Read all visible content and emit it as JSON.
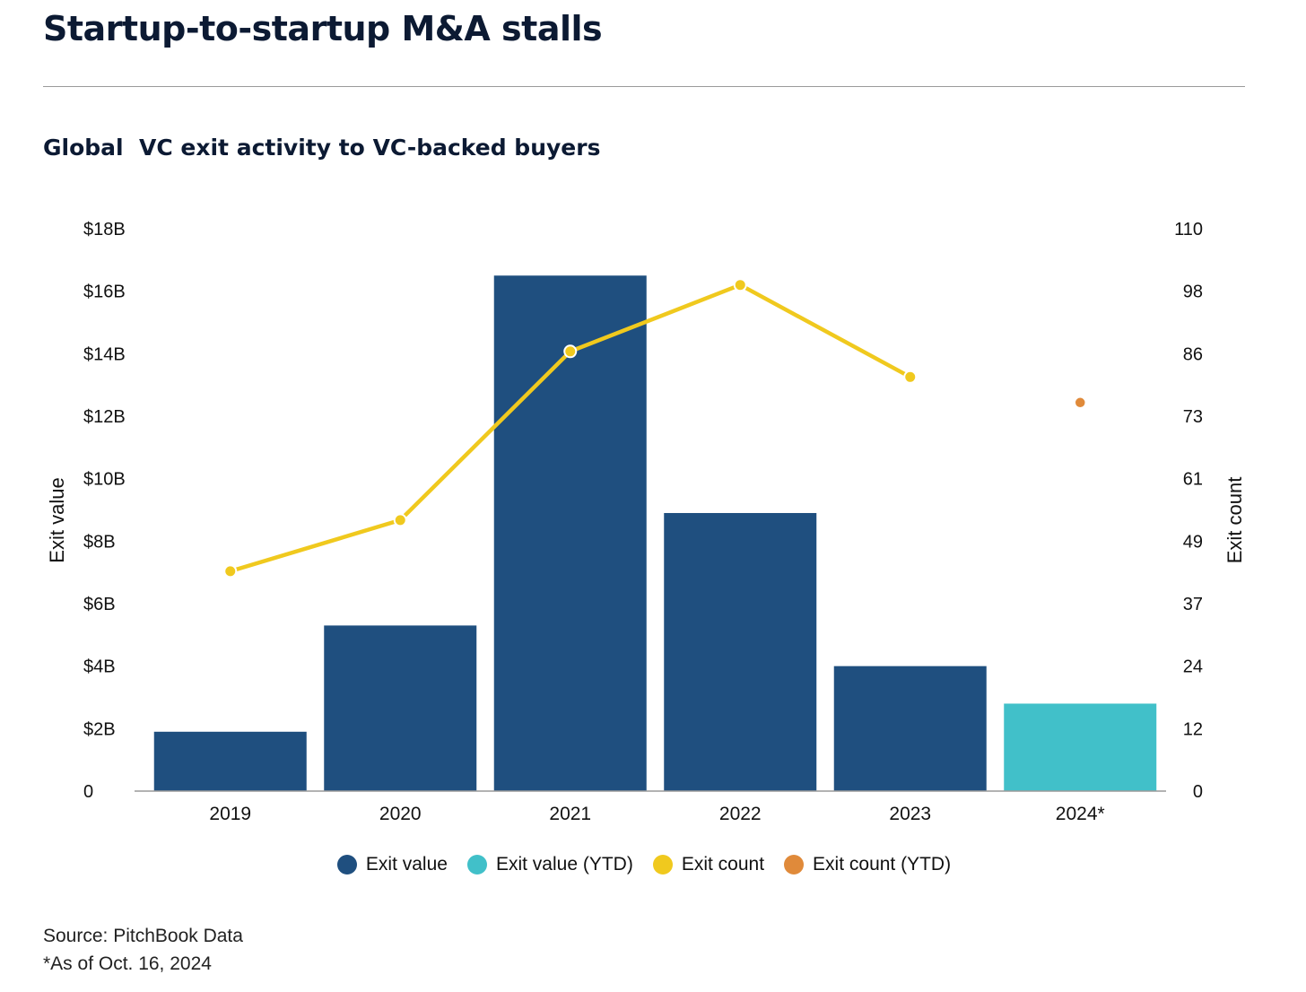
{
  "header": {
    "title": "Startup-to-startup M&A stalls",
    "subtitle": "Global  VC exit activity to VC-backed buyers"
  },
  "colors": {
    "exit_value": "#1f4f7f",
    "exit_value_ytd": "#41c0c9",
    "exit_count": "#f0c91e",
    "exit_count_ytd": "#e08a3a"
  },
  "chart_data": {
    "type": "bar",
    "categories": [
      "2019",
      "2020",
      "2021",
      "2022",
      "2023",
      "2024*"
    ],
    "ylabel_left": "Exit value",
    "ylabel_right": "Exit count",
    "left_ticks": [
      "0",
      "$2B",
      "$4B",
      "$6B",
      "$8B",
      "$10B",
      "$12B",
      "$14B",
      "$16B",
      "$18B"
    ],
    "right_ticks": [
      "0",
      "12",
      "24",
      "37",
      "49",
      "61",
      "73",
      "86",
      "98",
      "110"
    ],
    "ylim_left": [
      0,
      18
    ],
    "ylim_right": [
      0,
      110
    ],
    "series": [
      {
        "name": "Exit value",
        "type": "bar",
        "axis": "left",
        "unit": "$B",
        "values": [
          1.9,
          5.3,
          16.5,
          8.9,
          4.0,
          null
        ]
      },
      {
        "name": "Exit value (YTD)",
        "type": "bar",
        "axis": "left",
        "unit": "$B",
        "values": [
          null,
          null,
          null,
          null,
          null,
          2.8
        ]
      },
      {
        "name": "Exit count",
        "type": "line",
        "axis": "right",
        "values": [
          43,
          53,
          86,
          99,
          81,
          null
        ]
      },
      {
        "name": "Exit count (YTD)",
        "type": "point",
        "axis": "right",
        "values": [
          null,
          null,
          null,
          null,
          null,
          76
        ]
      }
    ],
    "legend_position": "bottom",
    "grid": false
  },
  "footer": {
    "source": "Source: PitchBook Data",
    "note": "*As of Oct. 16, 2024"
  }
}
